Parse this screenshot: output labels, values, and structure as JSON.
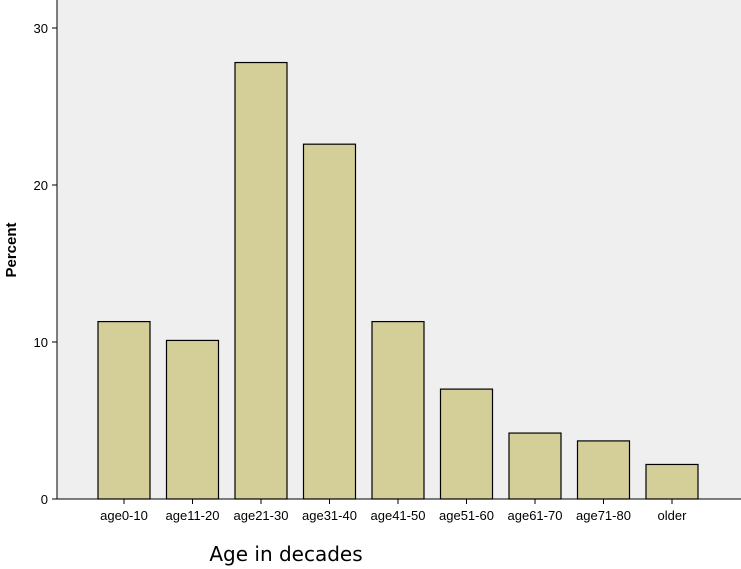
{
  "chart_data": {
    "type": "bar",
    "title": "",
    "xlabel": "Age in decades",
    "ylabel": "Percent",
    "categories": [
      "age0-10",
      "age11-20",
      "age21-30",
      "age31-40",
      "age41-50",
      "age51-60",
      "age61-70",
      "age71-80",
      "older"
    ],
    "values": [
      11.3,
      10.1,
      27.8,
      22.6,
      11.3,
      7.0,
      4.2,
      3.7,
      2.2
    ],
    "ylim": [
      0,
      30
    ],
    "yticks": [
      0,
      10,
      20,
      30
    ],
    "grid": false,
    "legend": "none",
    "colors": {
      "bar_fill": "#d4cf99",
      "bar_stroke": "#000000",
      "plot_background": "#efeff0",
      "axis": "#000000"
    }
  }
}
